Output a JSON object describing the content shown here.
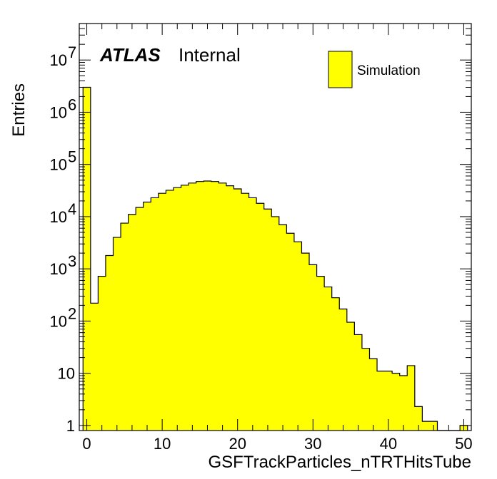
{
  "label": {
    "atlas": "ATLAS",
    "status": "Internal"
  },
  "colors": {
    "fill": "#ffff00",
    "line": "#000000"
  },
  "chart_data": {
    "type": "bar",
    "histogram": true,
    "xlabel": "GSFTrackParticles_nTRTHitsTube",
    "ylabel": "Entries",
    "xlim": [
      -1,
      51
    ],
    "ylim": [
      0.8,
      50000000
    ],
    "log_y": true,
    "bin_width": 1,
    "bin_low_edges": [
      -0.5,
      0.5,
      1.5,
      2.5,
      3.5,
      4.5,
      5.5,
      6.5,
      7.5,
      8.5,
      9.5,
      10.5,
      11.5,
      12.5,
      13.5,
      14.5,
      15.5,
      16.5,
      17.5,
      18.5,
      19.5,
      20.5,
      21.5,
      22.5,
      23.5,
      24.5,
      25.5,
      26.5,
      27.5,
      28.5,
      29.5,
      30.5,
      31.5,
      32.5,
      33.5,
      34.5,
      35.5,
      36.5,
      37.5,
      38.5,
      39.5,
      40.5,
      41.5,
      42.5,
      43.5,
      44.5,
      45.5,
      46.5,
      47.5,
      48.5,
      49.5
    ],
    "values": [
      3000000,
      220,
      720,
      1800,
      4000,
      7500,
      11000,
      15000,
      19000,
      23000,
      28000,
      32000,
      36000,
      40000,
      44000,
      47000,
      48000,
      47000,
      44000,
      39000,
      34000,
      28000,
      23000,
      18000,
      14000,
      10000,
      7000,
      4800,
      3300,
      2000,
      1200,
      720,
      450,
      280,
      170,
      95,
      55,
      30,
      19,
      11,
      11,
      10,
      9,
      14,
      2.3,
      1.2,
      1.2,
      0,
      0,
      0,
      1
    ],
    "x_ticks": [
      0,
      10,
      20,
      30,
      40,
      50
    ],
    "x_tick_labels": [
      "0",
      "10",
      "20",
      "30",
      "40",
      "50"
    ],
    "y_ticks": [
      {
        "value": 1,
        "base": "1",
        "exp": ""
      },
      {
        "value": 10,
        "base": "10",
        "exp": ""
      },
      {
        "value": 100,
        "base": "10",
        "exp": "2"
      },
      {
        "value": 1000,
        "base": "10",
        "exp": "3"
      },
      {
        "value": 10000,
        "base": "10",
        "exp": "4"
      },
      {
        "value": 100000,
        "base": "10",
        "exp": "5"
      },
      {
        "value": 1000000,
        "base": "10",
        "exp": "6"
      },
      {
        "value": 10000000,
        "base": "10",
        "exp": "7"
      }
    ],
    "legend": {
      "entries": [
        "Simulation"
      ],
      "placement": "top-right"
    },
    "grid": false
  }
}
